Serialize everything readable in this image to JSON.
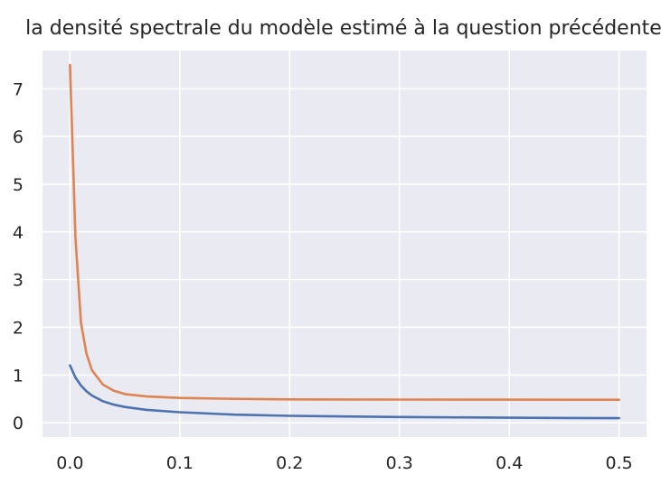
{
  "chart_data": {
    "type": "line",
    "title": "la densité spectrale du modèle estimé à la question précédente",
    "xlabel": "",
    "ylabel": "",
    "xlim": [
      -0.025,
      0.525
    ],
    "ylim": [
      -0.3,
      7.8
    ],
    "xticks": [
      "0.0",
      "0.1",
      "0.2",
      "0.3",
      "0.4",
      "0.5"
    ],
    "yticks": [
      "0",
      "1",
      "2",
      "3",
      "4",
      "5",
      "6",
      "7"
    ],
    "grid": true,
    "x": [
      0.0,
      0.005,
      0.01,
      0.015,
      0.02,
      0.03,
      0.04,
      0.05,
      0.07,
      0.1,
      0.15,
      0.2,
      0.3,
      0.4,
      0.5
    ],
    "series": [
      {
        "color": "#4c72b0",
        "values": [
          1.2,
          0.95,
          0.78,
          0.66,
          0.57,
          0.45,
          0.38,
          0.33,
          0.27,
          0.22,
          0.17,
          0.145,
          0.12,
          0.105,
          0.095
        ]
      },
      {
        "color": "#dd8452",
        "values": [
          7.5,
          3.9,
          2.1,
          1.45,
          1.1,
          0.8,
          0.67,
          0.6,
          0.55,
          0.52,
          0.5,
          0.49,
          0.485,
          0.483,
          0.482
        ]
      }
    ]
  }
}
